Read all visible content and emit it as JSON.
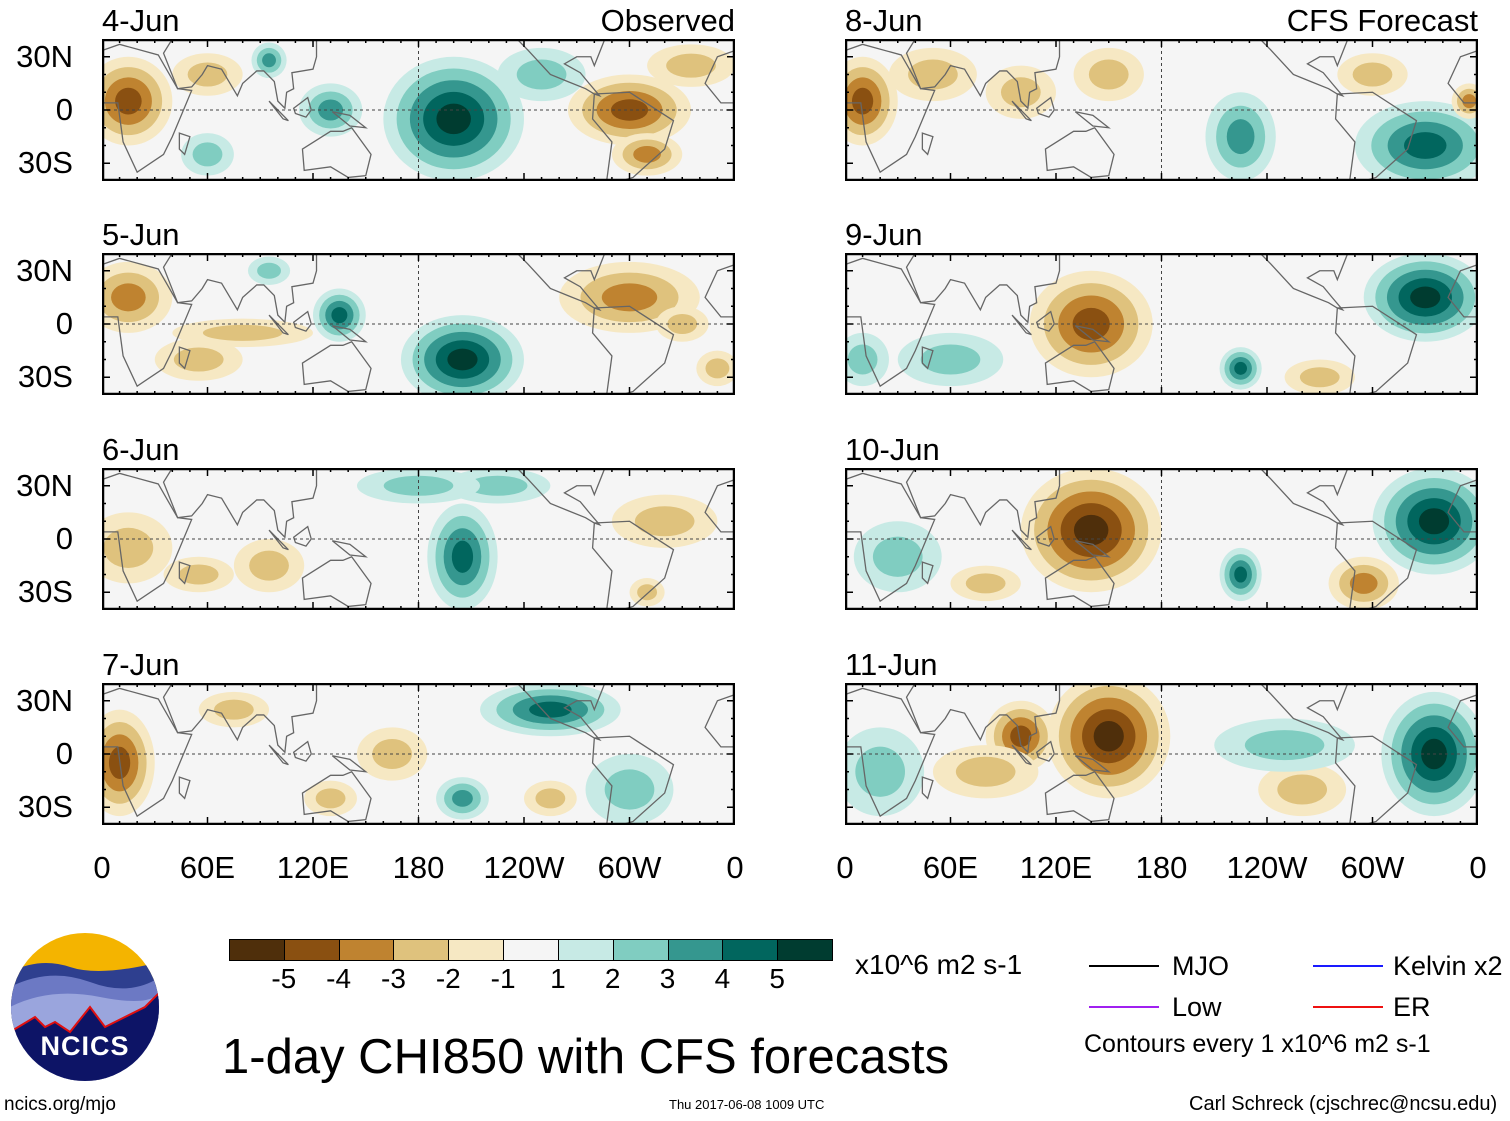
{
  "figure": {
    "title": "1-day CHI850 with CFS forecasts",
    "timestamp": "Thu 2017-06-08 1009 UTC",
    "website": "ncics.org/mjo",
    "author": "Carl Schreck (cjschrec@ncsu.edu)",
    "logo_text": "NCICS"
  },
  "columns": [
    {
      "title": "Observed",
      "x_ticks": [
        "0",
        "60E",
        "120E",
        "180",
        "120W",
        "60W",
        "0"
      ]
    },
    {
      "title": "CFS Forecast",
      "x_ticks": [
        "0",
        "60E",
        "120E",
        "180",
        "120W",
        "60W",
        "0"
      ]
    }
  ],
  "y_ticks": [
    "30N",
    "0",
    "30S"
  ],
  "panels": [
    {
      "date": "4-Jun",
      "column": 0
    },
    {
      "date": "5-Jun",
      "column": 0
    },
    {
      "date": "6-Jun",
      "column": 0
    },
    {
      "date": "7-Jun",
      "column": 0
    },
    {
      "date": "8-Jun",
      "column": 1
    },
    {
      "date": "9-Jun",
      "column": 1
    },
    {
      "date": "10-Jun",
      "column": 1
    },
    {
      "date": "11-Jun",
      "column": 1
    }
  ],
  "colorbar": {
    "labels": [
      "-5",
      "-4",
      "-3",
      "-2",
      "-1",
      "1",
      "2",
      "3",
      "4",
      "5"
    ],
    "colors": [
      "#4f2f0b",
      "#8a5011",
      "#bf8330",
      "#dfc27d",
      "#f6e8c3",
      "#f5f5f5",
      "#c7eae5",
      "#80cdc1",
      "#35978f",
      "#01665e",
      "#003c30"
    ],
    "units": "x10^6 m2 s-1"
  },
  "legend": {
    "items": [
      {
        "label": "MJO",
        "color": "#000000"
      },
      {
        "label": "Kelvin x2",
        "color": "#1a1aff"
      },
      {
        "label": "Low",
        "color": "#a020f0"
      },
      {
        "label": "ER",
        "color": "#ee1111"
      }
    ],
    "note": "Contours every 1 x10^6 m2 s-1"
  }
}
